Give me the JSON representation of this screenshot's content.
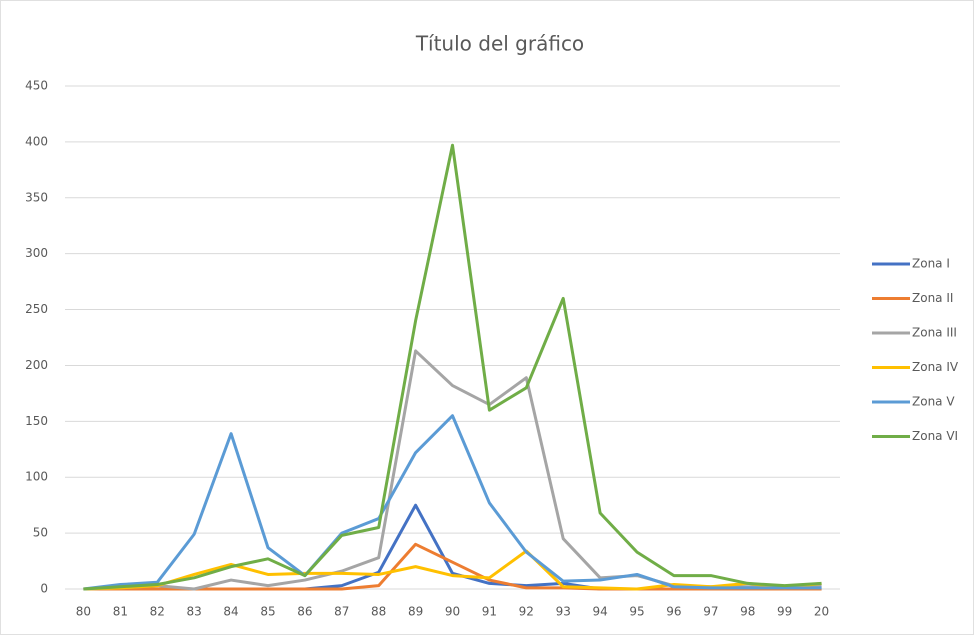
{
  "chart_data": {
    "type": "line",
    "title": "Título del gráfico",
    "categories": [
      "80",
      "81",
      "82",
      "83",
      "84",
      "85",
      "86",
      "87",
      "88",
      "89",
      "90",
      "91",
      "92",
      "93",
      "94",
      "95",
      "96",
      "97",
      "98",
      "99",
      "20"
    ],
    "series": [
      {
        "name": "Zona I",
        "color": "#4472c4",
        "values": [
          0,
          0,
          0,
          0,
          0,
          0,
          0,
          3,
          15,
          75,
          14,
          5,
          3,
          5,
          0,
          0,
          0,
          0,
          0,
          0,
          0
        ]
      },
      {
        "name": "Zona II",
        "color": "#ed7d31",
        "values": [
          0,
          0,
          0,
          0,
          0,
          0,
          0,
          0,
          3,
          40,
          24,
          8,
          1,
          1,
          0,
          0,
          0,
          0,
          0,
          0,
          0
        ]
      },
      {
        "name": "Zona III",
        "color": "#a5a5a5",
        "values": [
          0,
          1,
          3,
          0,
          8,
          3,
          8,
          16,
          28,
          213,
          182,
          165,
          189,
          45,
          10,
          12,
          3,
          2,
          2,
          2,
          3
        ]
      },
      {
        "name": "Zona IV",
        "color": "#ffc000",
        "values": [
          0,
          1,
          3,
          13,
          22,
          13,
          14,
          14,
          13,
          20,
          12,
          10,
          34,
          2,
          1,
          0,
          4,
          2,
          5,
          1,
          5
        ]
      },
      {
        "name": "Zona V",
        "color": "#5b9bd5",
        "values": [
          0,
          4,
          6,
          49,
          139,
          37,
          12,
          50,
          63,
          122,
          155,
          77,
          33,
          7,
          8,
          13,
          2,
          1,
          1,
          1,
          1
        ]
      },
      {
        "name": "Zona VI",
        "color": "#70ad47",
        "values": [
          0,
          2,
          4,
          10,
          20,
          27,
          12,
          48,
          55,
          240,
          397,
          160,
          180,
          260,
          68,
          33,
          12,
          12,
          5,
          3,
          5
        ]
      }
    ],
    "ylim": [
      0,
      450
    ],
    "yticks": [
      0,
      50,
      100,
      150,
      200,
      250,
      300,
      350,
      400,
      450
    ],
    "grid": true,
    "legend": "right"
  }
}
